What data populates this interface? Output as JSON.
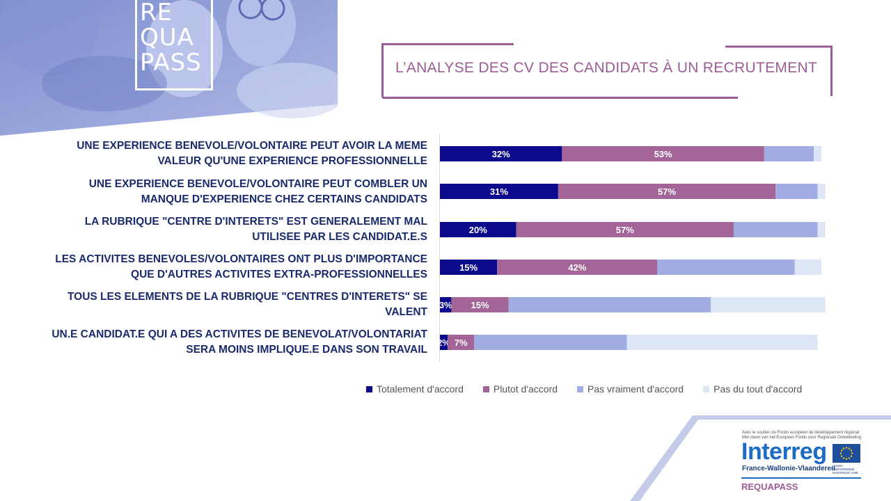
{
  "logo": {
    "lines": [
      "RE",
      "QUA",
      "PASS"
    ]
  },
  "page_title": "L’ANALYSE DES CV DES CANDIDATS À UN RECRUTEMENT",
  "colors": {
    "accent": "#9b5c96",
    "label": "#1a2a6c",
    "series": [
      "#0c0a8c",
      "#a36497",
      "#a0ace2",
      "#dce6f4"
    ]
  },
  "chart_data": {
    "type": "bar",
    "orientation": "horizontal",
    "stacked": true,
    "percent_scale": true,
    "xlim": [
      0,
      100
    ],
    "categories": [
      "UNE EXPERIENCE BENEVOLE/VOLONTAIRE PEUT AVOIR LA MEME VALEUR QU'UNE EXPERIENCE PROFESSIONNELLE",
      "UNE EXPERIENCE BENEVOLE/VOLONTAIRE PEUT COMBLER UN MANQUE D'EXPERIENCE CHEZ CERTAINS CANDIDATS",
      "LA RUBRIQUE \"CENTRE D'INTERETS\" EST GENERALEMENT MAL UTILISEE PAR LES CANDIDAT.E.S",
      "LES ACTIVITES BENEVOLES/VOLONTAIRES ONT PLUS D'IMPORTANCE QUE D'AUTRES ACTIVITES EXTRA-PROFESSIONNELLES",
      "TOUS LES ELEMENTS DE LA RUBRIQUE \"CENTRES D'INTERETS\" SE VALENT",
      "UN.E CANDIDAT.E QUI A DES ACTIVITES DE BENEVOLAT/VOLONTARIAT SERA MOINS IMPLIQUE.E DANS SON TRAVAIL"
    ],
    "category_lines": [
      [
        "UNE EXPERIENCE BENEVOLE/VOLONTAIRE PEUT AVOIR LA MEME",
        "VALEUR QU'UNE EXPERIENCE PROFESSIONNELLE"
      ],
      [
        "UNE EXPERIENCE BENEVOLE/VOLONTAIRE PEUT COMBLER UN",
        "MANQUE D'EXPERIENCE CHEZ CERTAINS CANDIDATS"
      ],
      [
        "LA RUBRIQUE \"CENTRE D'INTERETS\" EST GENERALEMENT MAL",
        "UTILISEE PAR LES CANDIDAT.E.S"
      ],
      [
        "LES ACTIVITES BENEVOLES/VOLONTAIRES ONT PLUS D'IMPORTANCE",
        "QUE D'AUTRES ACTIVITES EXTRA-PROFESSIONNELLES"
      ],
      [
        "TOUS LES ELEMENTS DE LA RUBRIQUE \"CENTRES D'INTERETS\" SE",
        "VALENT"
      ],
      [
        "UN.E CANDIDAT.E QUI A DES ACTIVITES DE BENEVOLAT/VOLONTARIAT",
        "SERA MOINS IMPLIQUE.E DANS SON TRAVAIL"
      ]
    ],
    "series": [
      {
        "name": "Totalement d'accord",
        "values": [
          32,
          31,
          20,
          15,
          3,
          2
        ],
        "labels": [
          "32%",
          "31%",
          "20%",
          "15%",
          "3%",
          "2%"
        ]
      },
      {
        "name": "Plutot d'accord",
        "values": [
          53,
          57,
          57,
          42,
          15,
          7
        ],
        "labels": [
          "53%",
          "57%",
          "57%",
          "42%",
          "15%",
          "7%"
        ]
      },
      {
        "name": "Pas vraiment d'accord",
        "values": [
          13,
          11,
          22,
          36,
          53,
          40
        ],
        "labels": [
          "",
          "",
          "",
          "",
          "",
          ""
        ]
      },
      {
        "name": "Pas du tout d'accord",
        "values": [
          2,
          2,
          2,
          7,
          30,
          50
        ],
        "labels": [
          "",
          "",
          "",
          "",
          "",
          ""
        ]
      }
    ],
    "legend_position": "bottom"
  },
  "footer": {
    "support_fr": "Avec le soutien du Fonds européen de développement régional",
    "support_nl": "Met steun van het Europees Fonds voor Regionale Ontwikkeling",
    "program": "Interreg",
    "region": "France-Wallonie-Vlaanderen",
    "eu_label_1": "UNION EUROPÉENNE",
    "eu_label_2": "EUROPESE UNIE",
    "project": "REQUAPASS"
  }
}
